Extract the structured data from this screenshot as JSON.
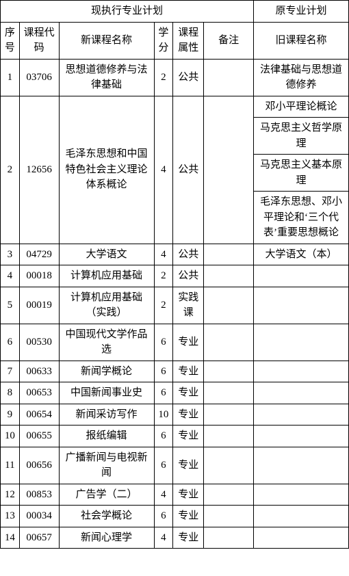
{
  "header": {
    "group_current": "现执行专业计划",
    "group_old": "原专业计划",
    "seq": "序号",
    "code": "课程代码",
    "new_name": "新课程名称",
    "credit": "学分",
    "attr": "课程属性",
    "remark": "备注",
    "old_name": "旧课程名称"
  },
  "rows": {
    "r1": {
      "seq": "1",
      "code": "03706",
      "new_name": "思想道德修养与法律基础",
      "credit": "2",
      "attr": "公共",
      "remark": "",
      "old": [
        "法律基础与思想道德修养"
      ]
    },
    "r2": {
      "seq": "2",
      "code": "12656",
      "new_name": "毛泽东思想和中国特色社会主义理论体系概论",
      "credit": "4",
      "attr": "公共",
      "remark": "",
      "old": [
        "邓小平理论概论",
        "马克思主义哲学原理",
        "马克思主义基本原理",
        "毛泽东思想、邓小平理论和‘三个代表’重要思想概论"
      ]
    },
    "r3": {
      "seq": "3",
      "code": "04729",
      "new_name": "大学语文",
      "credit": "4",
      "attr": "公共",
      "remark": "",
      "old": [
        "大学语文（本）"
      ]
    },
    "r4": {
      "seq": "4",
      "code": "00018",
      "new_name": "计算机应用基础",
      "credit": "2",
      "attr": "公共",
      "remark": "",
      "old": [
        ""
      ]
    },
    "r5": {
      "seq": "5",
      "code": "00019",
      "new_name": "计算机应用基础（实践）",
      "credit": "2",
      "attr": "实践课",
      "remark": "",
      "old": [
        ""
      ]
    },
    "r6": {
      "seq": "6",
      "code": "00530",
      "new_name": "中国现代文学作品选",
      "credit": "6",
      "attr": "专业",
      "remark": "",
      "old": [
        ""
      ]
    },
    "r7": {
      "seq": "7",
      "code": "00633",
      "new_name": "新闻学概论",
      "credit": "6",
      "attr": "专业",
      "remark": "",
      "old": [
        ""
      ]
    },
    "r8": {
      "seq": "8",
      "code": "00653",
      "new_name": "中国新闻事业史",
      "credit": "6",
      "attr": "专业",
      "remark": "",
      "old": [
        ""
      ]
    },
    "r9": {
      "seq": "9",
      "code": "00654",
      "new_name": "新闻采访写作",
      "credit": "10",
      "attr": "专业",
      "remark": "",
      "old": [
        ""
      ]
    },
    "r10": {
      "seq": "10",
      "code": "00655",
      "new_name": "报纸编辑",
      "credit": "6",
      "attr": "专业",
      "remark": "",
      "old": [
        ""
      ]
    },
    "r11": {
      "seq": "11",
      "code": "00656",
      "new_name": "广播新闻与电视新闻",
      "credit": "6",
      "attr": "专业",
      "remark": "",
      "old": [
        ""
      ]
    },
    "r12": {
      "seq": "12",
      "code": "00853",
      "new_name": "广告学（二）",
      "credit": "4",
      "attr": "专业",
      "remark": "",
      "old": [
        ""
      ]
    },
    "r13": {
      "seq": "13",
      "code": "00034",
      "new_name": "社会学概论",
      "credit": "6",
      "attr": "专业",
      "remark": "",
      "old": [
        ""
      ]
    },
    "r14": {
      "seq": "14",
      "code": "00657",
      "new_name": "新闻心理学",
      "credit": "4",
      "attr": "专业",
      "remark": "",
      "old": [
        ""
      ]
    }
  }
}
